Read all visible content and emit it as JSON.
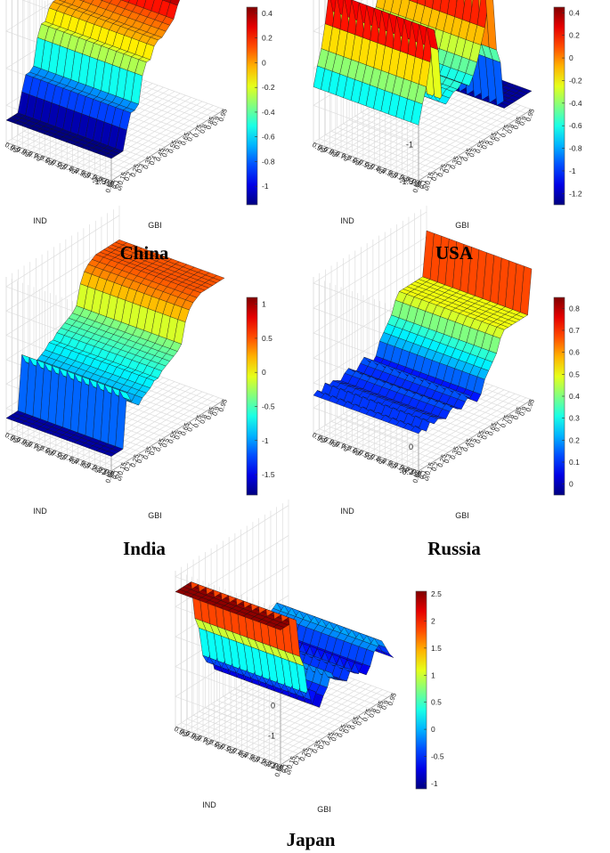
{
  "figure": {
    "captions": [
      "China",
      "USA",
      "India",
      "Russia",
      "Japan"
    ]
  },
  "chart_data": [
    {
      "type": "surface3d",
      "title": "China",
      "xlabel": "GBI",
      "ylabel": "IND",
      "x_ticks": [
        "0.05",
        "0.1",
        "0.15",
        "0.2",
        "0.25",
        "0.3",
        "0.35",
        "0.4",
        "0.45",
        "0.5",
        "0.55",
        "0.6",
        "0.65",
        "0.7",
        "0.75",
        "0.8",
        "0.85",
        "0.9",
        "0.95"
      ],
      "z_ticks": [
        0.5,
        0,
        -0.5,
        -1,
        -1.5
      ],
      "zlim": [
        -1.5,
        0.6
      ],
      "colorbar": {
        "min": -1.15,
        "max": 0.45,
        "ticks": [
          0.4,
          0.2,
          0,
          -0.2,
          -0.4,
          -0.6,
          -0.8,
          -1
        ]
      },
      "profile": [
        -1.2,
        -1.2,
        -1.2,
        -1.2,
        -0.95,
        -0.75,
        -0.75,
        -0.7,
        -0.35,
        -0.2,
        -0.2,
        -0.05,
        0.0,
        0.0,
        0.05,
        0.1,
        0.15,
        0.3,
        0.4,
        0.45,
        0.45,
        0.45,
        0.45,
        0.45,
        0.45,
        0.45,
        0.45,
        0.45,
        0.45,
        0.45
      ]
    },
    {
      "type": "surface3d",
      "title": "USA",
      "xlabel": "GBI",
      "ylabel": "IND",
      "x_ticks": [
        "0.05",
        "0.1",
        "0.15",
        "0.2",
        "0.25",
        "0.3",
        "0.35",
        "0.4",
        "0.45",
        "0.5",
        "0.55",
        "0.6",
        "0.65",
        "0.7",
        "0.75",
        "0.8",
        "0.85",
        "0.9",
        "0.95"
      ],
      "z_ticks": [
        0.5,
        0,
        -0.5,
        -1,
        -1.5
      ],
      "zlim": [
        -1.5,
        0.6
      ],
      "colorbar": {
        "min": -1.3,
        "max": 0.45,
        "ticks": [
          0.4,
          0.2,
          0,
          -0.2,
          -0.4,
          -0.6,
          -0.8,
          -1,
          -1.2
        ]
      },
      "profile": [
        -0.75,
        -0.5,
        -0.3,
        0.0,
        0.4,
        0.1,
        -0.6,
        -0.7,
        -0.65,
        -0.6,
        -0.6,
        -0.55,
        -0.6,
        -0.65,
        -0.55,
        -0.4,
        -0.2,
        0.0,
        0.35,
        0.4,
        -0.4,
        -0.6,
        -1.25,
        -1.25,
        -1.25,
        -1.25,
        -1.25,
        -1.25,
        -1.25,
        -1.25
      ]
    },
    {
      "type": "surface3d",
      "title": "India",
      "xlabel": "GBI",
      "ylabel": "IND",
      "x_ticks": [
        "0.05",
        "0.1",
        "0.15",
        "0.2",
        "0.25",
        "0.3",
        "0.35",
        "0.4",
        "0.45",
        "0.5",
        "0.55",
        "0.6",
        "0.65",
        "0.7",
        "0.75",
        "0.8",
        "0.85",
        "0.9",
        "0.95"
      ],
      "z_ticks": [
        1,
        0.5,
        0,
        -0.5,
        -1,
        -1.5,
        -2
      ],
      "zlim": [
        -2,
        1.2
      ],
      "colorbar": {
        "min": -1.8,
        "max": 1.1,
        "ticks": [
          1,
          0.5,
          0,
          -0.5,
          -1,
          -1.5
        ]
      },
      "profile": [
        -1.7,
        -1.7,
        -1.7,
        -1.7,
        -0.6,
        -0.8,
        -0.9,
        -1.0,
        -0.9,
        -0.85,
        -0.8,
        -0.7,
        -0.7,
        -0.6,
        -0.55,
        -0.5,
        -0.45,
        -0.4,
        -0.3,
        0.1,
        0.3,
        0.4,
        0.45,
        0.5,
        0.5,
        0.5,
        0.5,
        0.5,
        0.5,
        0.5
      ]
    },
    {
      "type": "surface3d",
      "title": "Russia",
      "xlabel": "GBI",
      "ylabel": "IND",
      "x_ticks": [
        "0.05",
        "0.1",
        "0.15",
        "0.2",
        "0.25",
        "0.3",
        "0.35",
        "0.4",
        "0.45",
        "0.5",
        "0.55",
        "0.6",
        "0.65",
        "0.7",
        "0.75",
        "0.8",
        "0.85",
        "0.9",
        "0.95"
      ],
      "z_ticks": [
        1,
        0.8,
        0.6,
        0.4,
        0.2,
        0,
        -0.2
      ],
      "zlim": [
        -0.2,
        1.05
      ],
      "colorbar": {
        "min": -0.05,
        "max": 0.85,
        "ticks": [
          0.8,
          0.7,
          0.6,
          0.5,
          0.4,
          0.3,
          0.2,
          0.1,
          0
        ]
      },
      "profile": [
        0.1,
        0.12,
        0.08,
        0.14,
        0.1,
        0.12,
        0.1,
        0.08,
        0.12,
        0.14,
        0.1,
        0.08,
        0.12,
        0.15,
        0.1,
        0.06,
        0.1,
        0.2,
        0.25,
        0.3,
        0.35,
        0.45,
        0.5,
        0.5,
        0.5,
        0.5,
        0.5,
        0.5,
        0.5,
        0.85
      ]
    },
    {
      "type": "surface3d",
      "title": "Japan",
      "xlabel": "GBI",
      "ylabel": "IND",
      "x_ticks": [
        "0.05",
        "0.1",
        "0.15",
        "0.2",
        "0.25",
        "0.3",
        "0.35",
        "0.4",
        "0.45",
        "0.5",
        "0.55",
        "0.6",
        "0.65",
        "0.7",
        "0.75",
        "0.8",
        "0.85",
        "0.9",
        "0.95"
      ],
      "z_ticks": [
        3,
        2,
        1,
        0,
        -1,
        -2
      ],
      "zlim": [
        -2,
        3.2
      ],
      "colorbar": {
        "min": -1.1,
        "max": 2.55,
        "ticks": [
          2.5,
          2,
          1.5,
          1,
          0.5,
          0,
          -0.5,
          -1
        ]
      },
      "profile": [
        2.5,
        2.5,
        2.5,
        2.5,
        2.5,
        1.2,
        0.8,
        -0.2,
        -0.5,
        -0.3,
        -0.9,
        -0.6,
        -0.4,
        0.0,
        -0.3,
        -0.4,
        -0.5,
        -0.6,
        -0.3,
        -0.5,
        -0.6,
        -0.4,
        -0.8,
        -0.6,
        -0.2,
        -0.1,
        0.0,
        -0.3,
        -0.6,
        -0.8
      ]
    }
  ]
}
